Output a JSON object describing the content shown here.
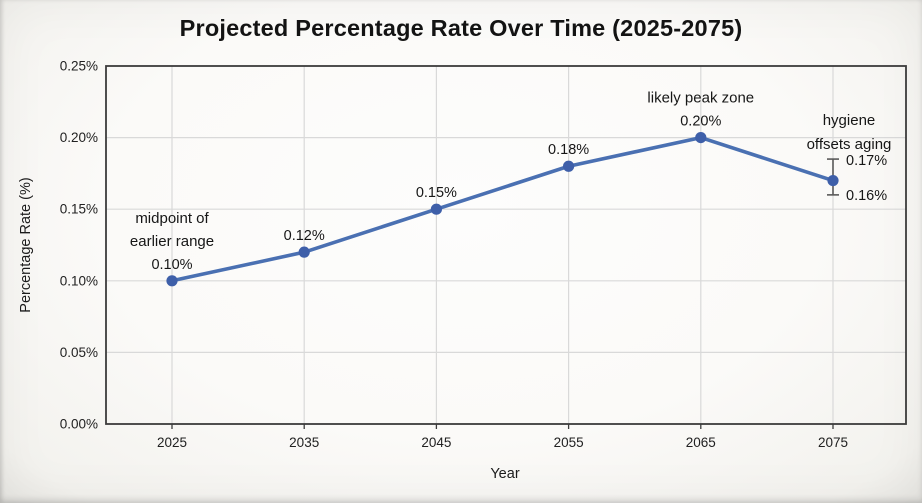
{
  "page": {
    "background": "#fbfaf8"
  },
  "chart_data": {
    "type": "line",
    "title": "Projected Percentage Rate Over Time (2025-2075)",
    "xlabel": "Year",
    "ylabel": "Percentage Rate (%)",
    "categories": [
      2025,
      2035,
      2045,
      2055,
      2065,
      2075
    ],
    "values": [
      0.1,
      0.12,
      0.15,
      0.18,
      0.2,
      0.17
    ],
    "point_labels": [
      "0.10%",
      "0.12%",
      "0.15%",
      "0.18%",
      "0.20%",
      null
    ],
    "point_annotations": [
      {
        "index": 0,
        "lines": [
          "midpoint of",
          "earlier range"
        ]
      },
      {
        "index": 4,
        "lines": [
          "likely peak zone"
        ]
      },
      {
        "index": 5,
        "lines": [
          "hygiene",
          "offsets aging"
        ]
      }
    ],
    "error_bar": {
      "index": 5,
      "high": 0.185,
      "low": 0.16,
      "high_label": "0.17%",
      "low_label": "0.16%"
    },
    "ylim": [
      0,
      0.25
    ],
    "yticks": [
      0,
      0.05,
      0.1,
      0.15,
      0.2,
      0.25
    ],
    "ytick_labels": [
      "0.00%",
      "0.05%",
      "0.10%",
      "0.15%",
      "0.20%",
      "0.25%"
    ],
    "grid": true,
    "legend": false,
    "colors": {
      "line": "#4a70b2",
      "marker": "#3e5fa9",
      "error": "#5a5a5a",
      "grid": "#d9d9d9",
      "axis": "#3c3c3c",
      "text": "#1c1c1c"
    }
  }
}
